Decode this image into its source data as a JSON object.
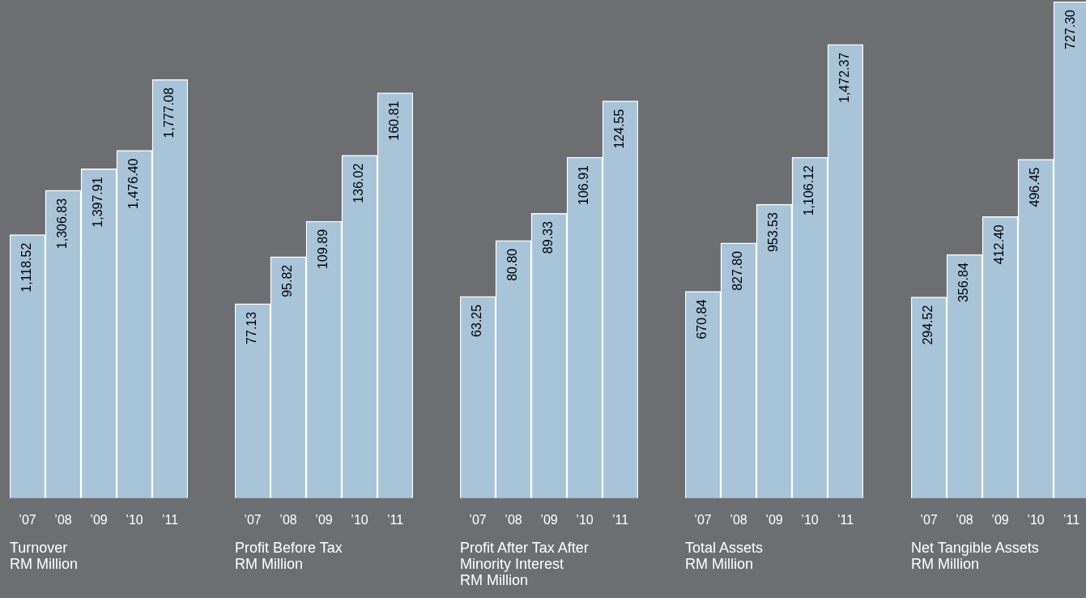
{
  "chart_data": [
    {
      "type": "bar",
      "title": "Turnover",
      "subtitle": "RM Million",
      "categories": [
        "’07",
        "’08",
        "’09",
        "’10",
        "’11"
      ],
      "values": [
        1118.52,
        1306.83,
        1397.91,
        1476.4,
        1777.08
      ],
      "value_labels": [
        "1,118.52",
        "1,306.83",
        "1,397.91",
        "1,476.40",
        "1,777.08"
      ],
      "color": "#a8c4d8",
      "ylim": [
        0,
        2108
      ],
      "tick_labels": "x"
    },
    {
      "type": "bar",
      "title": "Profit Before Tax",
      "subtitle": "RM Million",
      "categories": [
        "’07",
        "’08",
        "’09",
        "’10",
        "’11"
      ],
      "values": [
        77.13,
        95.82,
        109.89,
        136.02,
        160.81
      ],
      "value_labels": [
        "77.13",
        "95.82",
        "109.89",
        "136.02",
        "160.81"
      ],
      "color": "#a8c4d8",
      "ylim": [
        0,
        197
      ],
      "tick_labels": "x"
    },
    {
      "type": "bar",
      "title": "Profit After Tax After Minority Interest",
      "subtitle": "RM Million",
      "categories": [
        "’07",
        "’08",
        "’09",
        "’10",
        "’11"
      ],
      "values": [
        63.25,
        80.8,
        89.33,
        106.91,
        124.55
      ],
      "value_labels": [
        "63.25",
        "80.80",
        "89.33",
        "106.91",
        "124.55"
      ],
      "color": "#a8c4d8",
      "ylim": [
        0,
        155.7
      ],
      "tick_labels": "x"
    },
    {
      "type": "bar",
      "title": "Total Assets",
      "subtitle": "RM Million",
      "categories": [
        "’07",
        "’08",
        "’09",
        "’10",
        "’11"
      ],
      "values": [
        670.84,
        827.8,
        953.53,
        1106.12,
        1472.37
      ],
      "value_labels": [
        "670.84",
        "827.80",
        "953.53",
        "1,106.12",
        "1,472.37"
      ],
      "color": "#a8c4d8",
      "ylim": [
        0,
        1611
      ],
      "tick_labels": "x"
    },
    {
      "type": "bar",
      "title": "Net Tangible Assets",
      "subtitle": "RM Million",
      "categories": [
        "’07",
        "’08",
        "’09",
        "’10",
        "’11"
      ],
      "values": [
        294.52,
        356.84,
        412.4,
        496.45,
        727.3
      ],
      "value_labels": [
        "294.52",
        "356.84",
        "412.40",
        "496.45",
        "727.30"
      ],
      "color": "#a8c4d8",
      "ylim": [
        0,
        727.3
      ],
      "tick_labels": "x"
    }
  ]
}
